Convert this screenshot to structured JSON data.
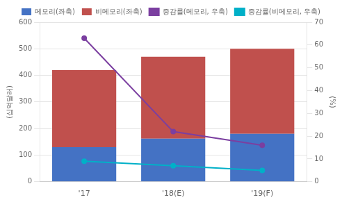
{
  "chart_data": {
    "type": "bar",
    "stacked": true,
    "categories": [
      "'17",
      "'18(E)",
      "'19(F)"
    ],
    "ylabel": "(십억달러)",
    "y2label": "(%)",
    "ylim": [
      0,
      600
    ],
    "yticks": [
      0,
      100,
      200,
      300,
      400,
      500,
      600
    ],
    "y2lim": [
      0,
      70
    ],
    "y2ticks": [
      0,
      10,
      20,
      30,
      40,
      50,
      60,
      70
    ],
    "grid": true,
    "legend": "top",
    "series": [
      {
        "name": "메모리(좌축)",
        "color": "#4472C4",
        "values": [
          130,
          162,
          180
        ]
      },
      {
        "name": "비메모리(좌축)",
        "color": "#C0504D",
        "values": [
          290,
          308,
          320
        ]
      },
      {
        "name": "증감률(메모리, 우축)",
        "type": "line",
        "axis": "y2",
        "color": "#7B3FA0",
        "values": [
          63,
          22,
          16
        ]
      },
      {
        "name": "증감률(비메모리, 우축)",
        "type": "line",
        "axis": "y2",
        "color": "#00B0C8",
        "values": [
          9,
          7,
          5
        ]
      }
    ]
  }
}
